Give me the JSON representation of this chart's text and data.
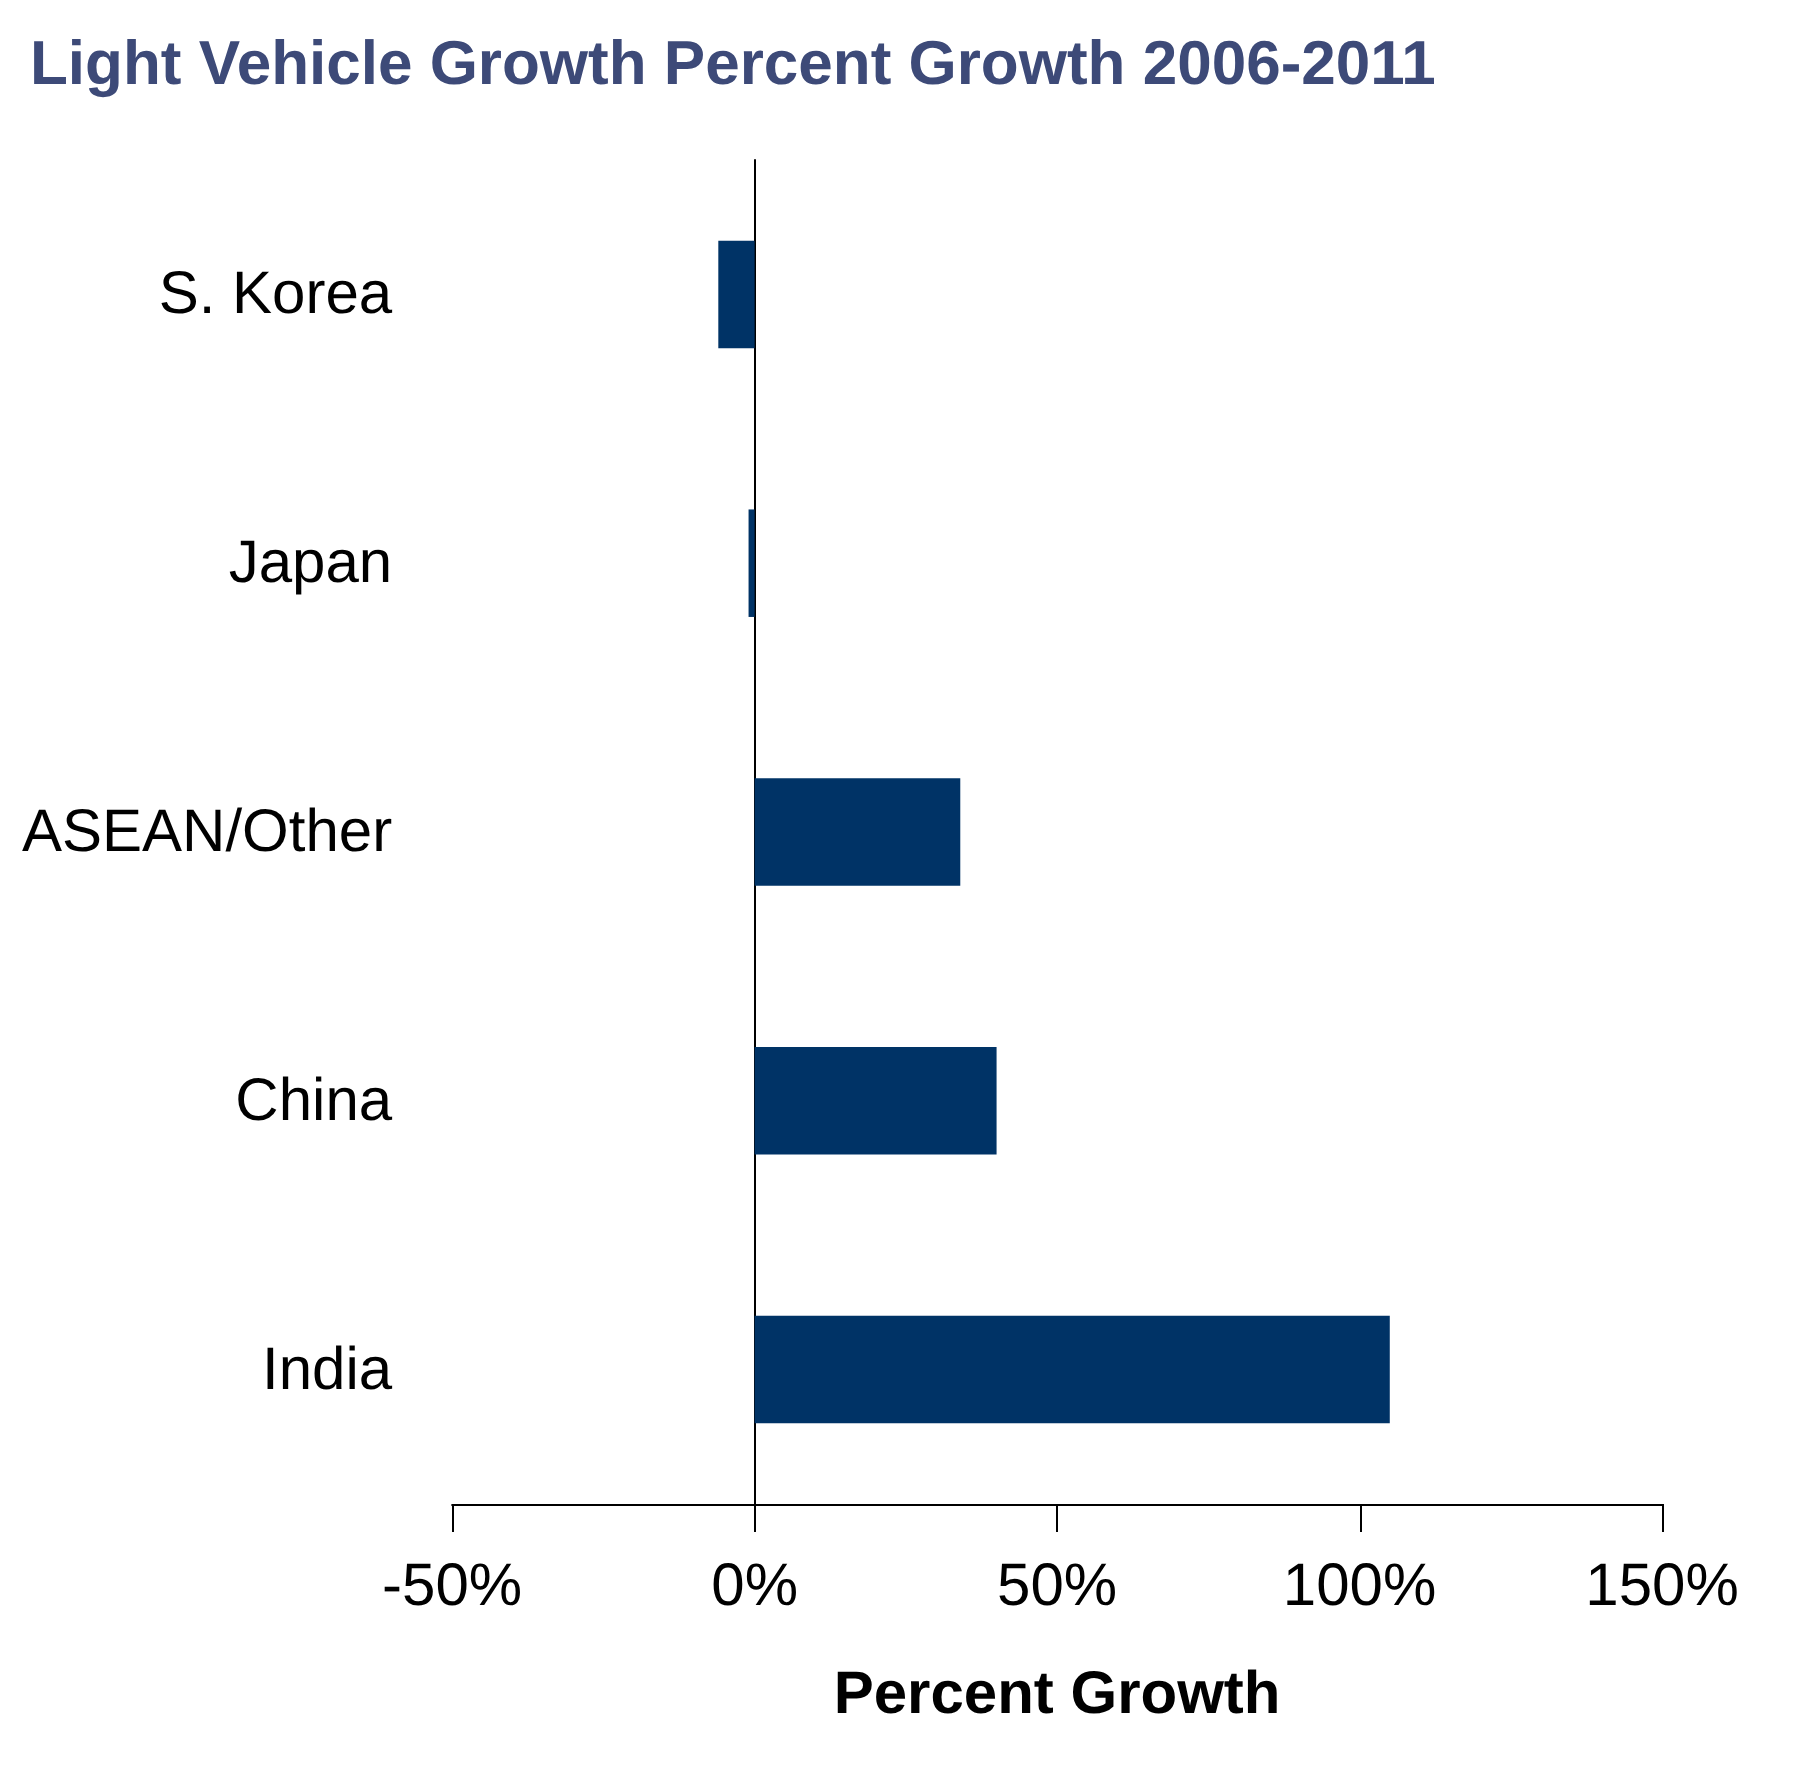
{
  "chart_data": {
    "type": "bar",
    "orientation": "horizontal",
    "title": "Light Vehicle Growth Percent Growth 2006-2011",
    "xlabel": "Percent Growth",
    "categories": [
      "S. Korea",
      "Japan",
      "ASEAN/Other",
      "China",
      "India"
    ],
    "values": [
      -6,
      -1,
      34,
      40,
      105
    ],
    "color": "#003366",
    "xlim": [
      -50,
      150
    ],
    "xticks": [
      {
        "value": -50,
        "label": "-50%"
      },
      {
        "value": 0,
        "label": "0%"
      },
      {
        "value": 50,
        "label": "50%"
      },
      {
        "value": 100,
        "label": "100%"
      },
      {
        "value": 150,
        "label": "150%"
      }
    ],
    "data_labels": false
  }
}
